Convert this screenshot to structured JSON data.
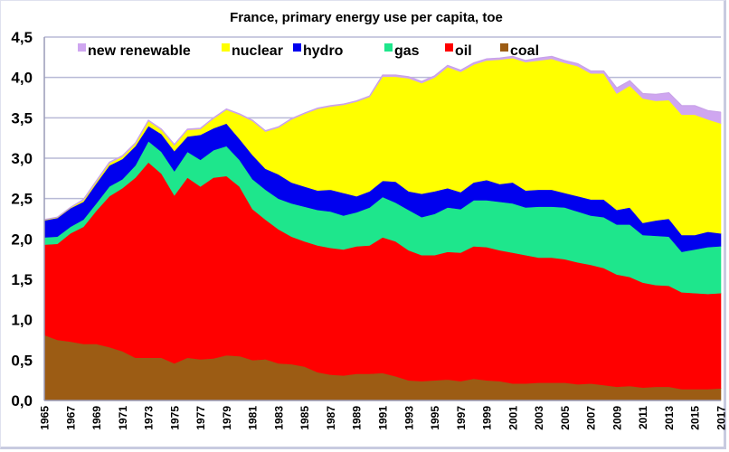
{
  "chart_data": {
    "type": "area",
    "stacked": true,
    "title": "France, primary energy use per capita, toe",
    "xlabel": "",
    "ylabel": "",
    "ylim": [
      0,
      4.5
    ],
    "xlim": [
      1965,
      2017
    ],
    "yticks": [
      "0,0",
      "0,5",
      "1,0",
      "1,5",
      "2,0",
      "2,5",
      "3,0",
      "3,5",
      "4,0",
      "4,5"
    ],
    "ytick_values": [
      0,
      0.5,
      1.0,
      1.5,
      2.0,
      2.5,
      3.0,
      3.5,
      4.0,
      4.5
    ],
    "xticks": [
      "1965",
      "1967",
      "1969",
      "1971",
      "1973",
      "1975",
      "1977",
      "1979",
      "1981",
      "1983",
      "1985",
      "1987",
      "1989",
      "1991",
      "1993",
      "1995",
      "1997",
      "1999",
      "2001",
      "2003",
      "2005",
      "2007",
      "2009",
      "2011",
      "2013",
      "2015",
      "2017"
    ],
    "grid": "horizontal",
    "legend_position": "top",
    "x": [
      1965,
      1966,
      1967,
      1968,
      1969,
      1970,
      1971,
      1972,
      1973,
      1974,
      1975,
      1976,
      1977,
      1978,
      1979,
      1980,
      1981,
      1982,
      1983,
      1984,
      1985,
      1986,
      1987,
      1988,
      1989,
      1990,
      1991,
      1992,
      1993,
      1994,
      1995,
      1996,
      1997,
      1998,
      1999,
      2000,
      2001,
      2002,
      2003,
      2004,
      2005,
      2006,
      2007,
      2008,
      2009,
      2010,
      2011,
      2012,
      2013,
      2014,
      2015,
      2016,
      2017
    ],
    "series": [
      {
        "name": "coal",
        "color": "#9c5c14",
        "values": [
          0.81,
          0.75,
          0.73,
          0.7,
          0.7,
          0.66,
          0.61,
          0.53,
          0.53,
          0.53,
          0.46,
          0.53,
          0.51,
          0.52,
          0.56,
          0.55,
          0.5,
          0.51,
          0.46,
          0.45,
          0.42,
          0.35,
          0.32,
          0.31,
          0.33,
          0.33,
          0.34,
          0.3,
          0.25,
          0.24,
          0.25,
          0.26,
          0.24,
          0.27,
          0.25,
          0.24,
          0.21,
          0.21,
          0.22,
          0.22,
          0.22,
          0.2,
          0.21,
          0.19,
          0.17,
          0.18,
          0.16,
          0.17,
          0.17,
          0.14,
          0.14,
          0.14,
          0.15
        ]
      },
      {
        "name": "oil",
        "color": "#ff0000",
        "values": [
          1.12,
          1.19,
          1.34,
          1.45,
          1.65,
          1.87,
          2.02,
          2.23,
          2.42,
          2.28,
          2.08,
          2.23,
          2.14,
          2.24,
          2.22,
          2.1,
          1.87,
          1.73,
          1.66,
          1.58,
          1.55,
          1.57,
          1.57,
          1.56,
          1.58,
          1.59,
          1.68,
          1.67,
          1.61,
          1.56,
          1.55,
          1.58,
          1.59,
          1.64,
          1.65,
          1.62,
          1.62,
          1.59,
          1.55,
          1.55,
          1.53,
          1.51,
          1.47,
          1.45,
          1.39,
          1.35,
          1.3,
          1.26,
          1.25,
          1.2,
          1.19,
          1.18,
          1.18
        ]
      },
      {
        "name": "gas",
        "color": "#1ee68c",
        "values": [
          0.09,
          0.09,
          0.08,
          0.09,
          0.09,
          0.12,
          0.11,
          0.15,
          0.26,
          0.27,
          0.3,
          0.32,
          0.33,
          0.34,
          0.37,
          0.33,
          0.37,
          0.37,
          0.38,
          0.41,
          0.43,
          0.44,
          0.45,
          0.42,
          0.42,
          0.47,
          0.5,
          0.48,
          0.5,
          0.47,
          0.51,
          0.55,
          0.54,
          0.57,
          0.58,
          0.6,
          0.61,
          0.59,
          0.63,
          0.63,
          0.64,
          0.63,
          0.61,
          0.63,
          0.62,
          0.65,
          0.59,
          0.61,
          0.61,
          0.5,
          0.54,
          0.58,
          0.58
        ]
      },
      {
        "name": "hydro",
        "color": "#0000ee",
        "values": [
          0.21,
          0.23,
          0.23,
          0.22,
          0.25,
          0.26,
          0.25,
          0.24,
          0.19,
          0.22,
          0.25,
          0.19,
          0.31,
          0.27,
          0.28,
          0.26,
          0.3,
          0.26,
          0.3,
          0.26,
          0.25,
          0.24,
          0.27,
          0.28,
          0.2,
          0.2,
          0.2,
          0.26,
          0.23,
          0.29,
          0.28,
          0.24,
          0.21,
          0.22,
          0.25,
          0.22,
          0.26,
          0.21,
          0.21,
          0.21,
          0.18,
          0.19,
          0.2,
          0.22,
          0.18,
          0.21,
          0.15,
          0.19,
          0.22,
          0.21,
          0.18,
          0.19,
          0.16
        ]
      },
      {
        "name": "nuclear",
        "color": "#ffff00",
        "values": [
          0.01,
          0.01,
          0.01,
          0.02,
          0.02,
          0.03,
          0.03,
          0.03,
          0.06,
          0.05,
          0.07,
          0.08,
          0.07,
          0.12,
          0.17,
          0.3,
          0.42,
          0.46,
          0.58,
          0.78,
          0.9,
          1.01,
          1.03,
          1.09,
          1.17,
          1.17,
          1.29,
          1.3,
          1.4,
          1.37,
          1.41,
          1.5,
          1.49,
          1.46,
          1.48,
          1.54,
          1.54,
          1.59,
          1.6,
          1.62,
          1.61,
          1.61,
          1.56,
          1.56,
          1.44,
          1.51,
          1.54,
          1.48,
          1.47,
          1.49,
          1.49,
          1.39,
          1.36
        ]
      },
      {
        "name": "new renewable",
        "color": "#cfa6f0",
        "values": [
          0.0,
          0.0,
          0.0,
          0.01,
          0.01,
          0.01,
          0.01,
          0.01,
          0.01,
          0.01,
          0.01,
          0.01,
          0.01,
          0.01,
          0.01,
          0.01,
          0.01,
          0.01,
          0.01,
          0.01,
          0.01,
          0.01,
          0.01,
          0.01,
          0.01,
          0.01,
          0.02,
          0.02,
          0.02,
          0.02,
          0.02,
          0.02,
          0.02,
          0.02,
          0.02,
          0.02,
          0.02,
          0.02,
          0.03,
          0.03,
          0.03,
          0.03,
          0.03,
          0.03,
          0.07,
          0.06,
          0.06,
          0.08,
          0.09,
          0.11,
          0.11,
          0.11,
          0.14
        ]
      }
    ],
    "legend": [
      {
        "label": "new renewable",
        "color": "#cfa6f0"
      },
      {
        "label": "nuclear",
        "color": "#ffff00"
      },
      {
        "label": "hydro",
        "color": "#0000ee"
      },
      {
        "label": "gas",
        "color": "#1ee68c"
      },
      {
        "label": "oil",
        "color": "#ff0000"
      },
      {
        "label": "coal",
        "color": "#9c5c14"
      }
    ]
  }
}
